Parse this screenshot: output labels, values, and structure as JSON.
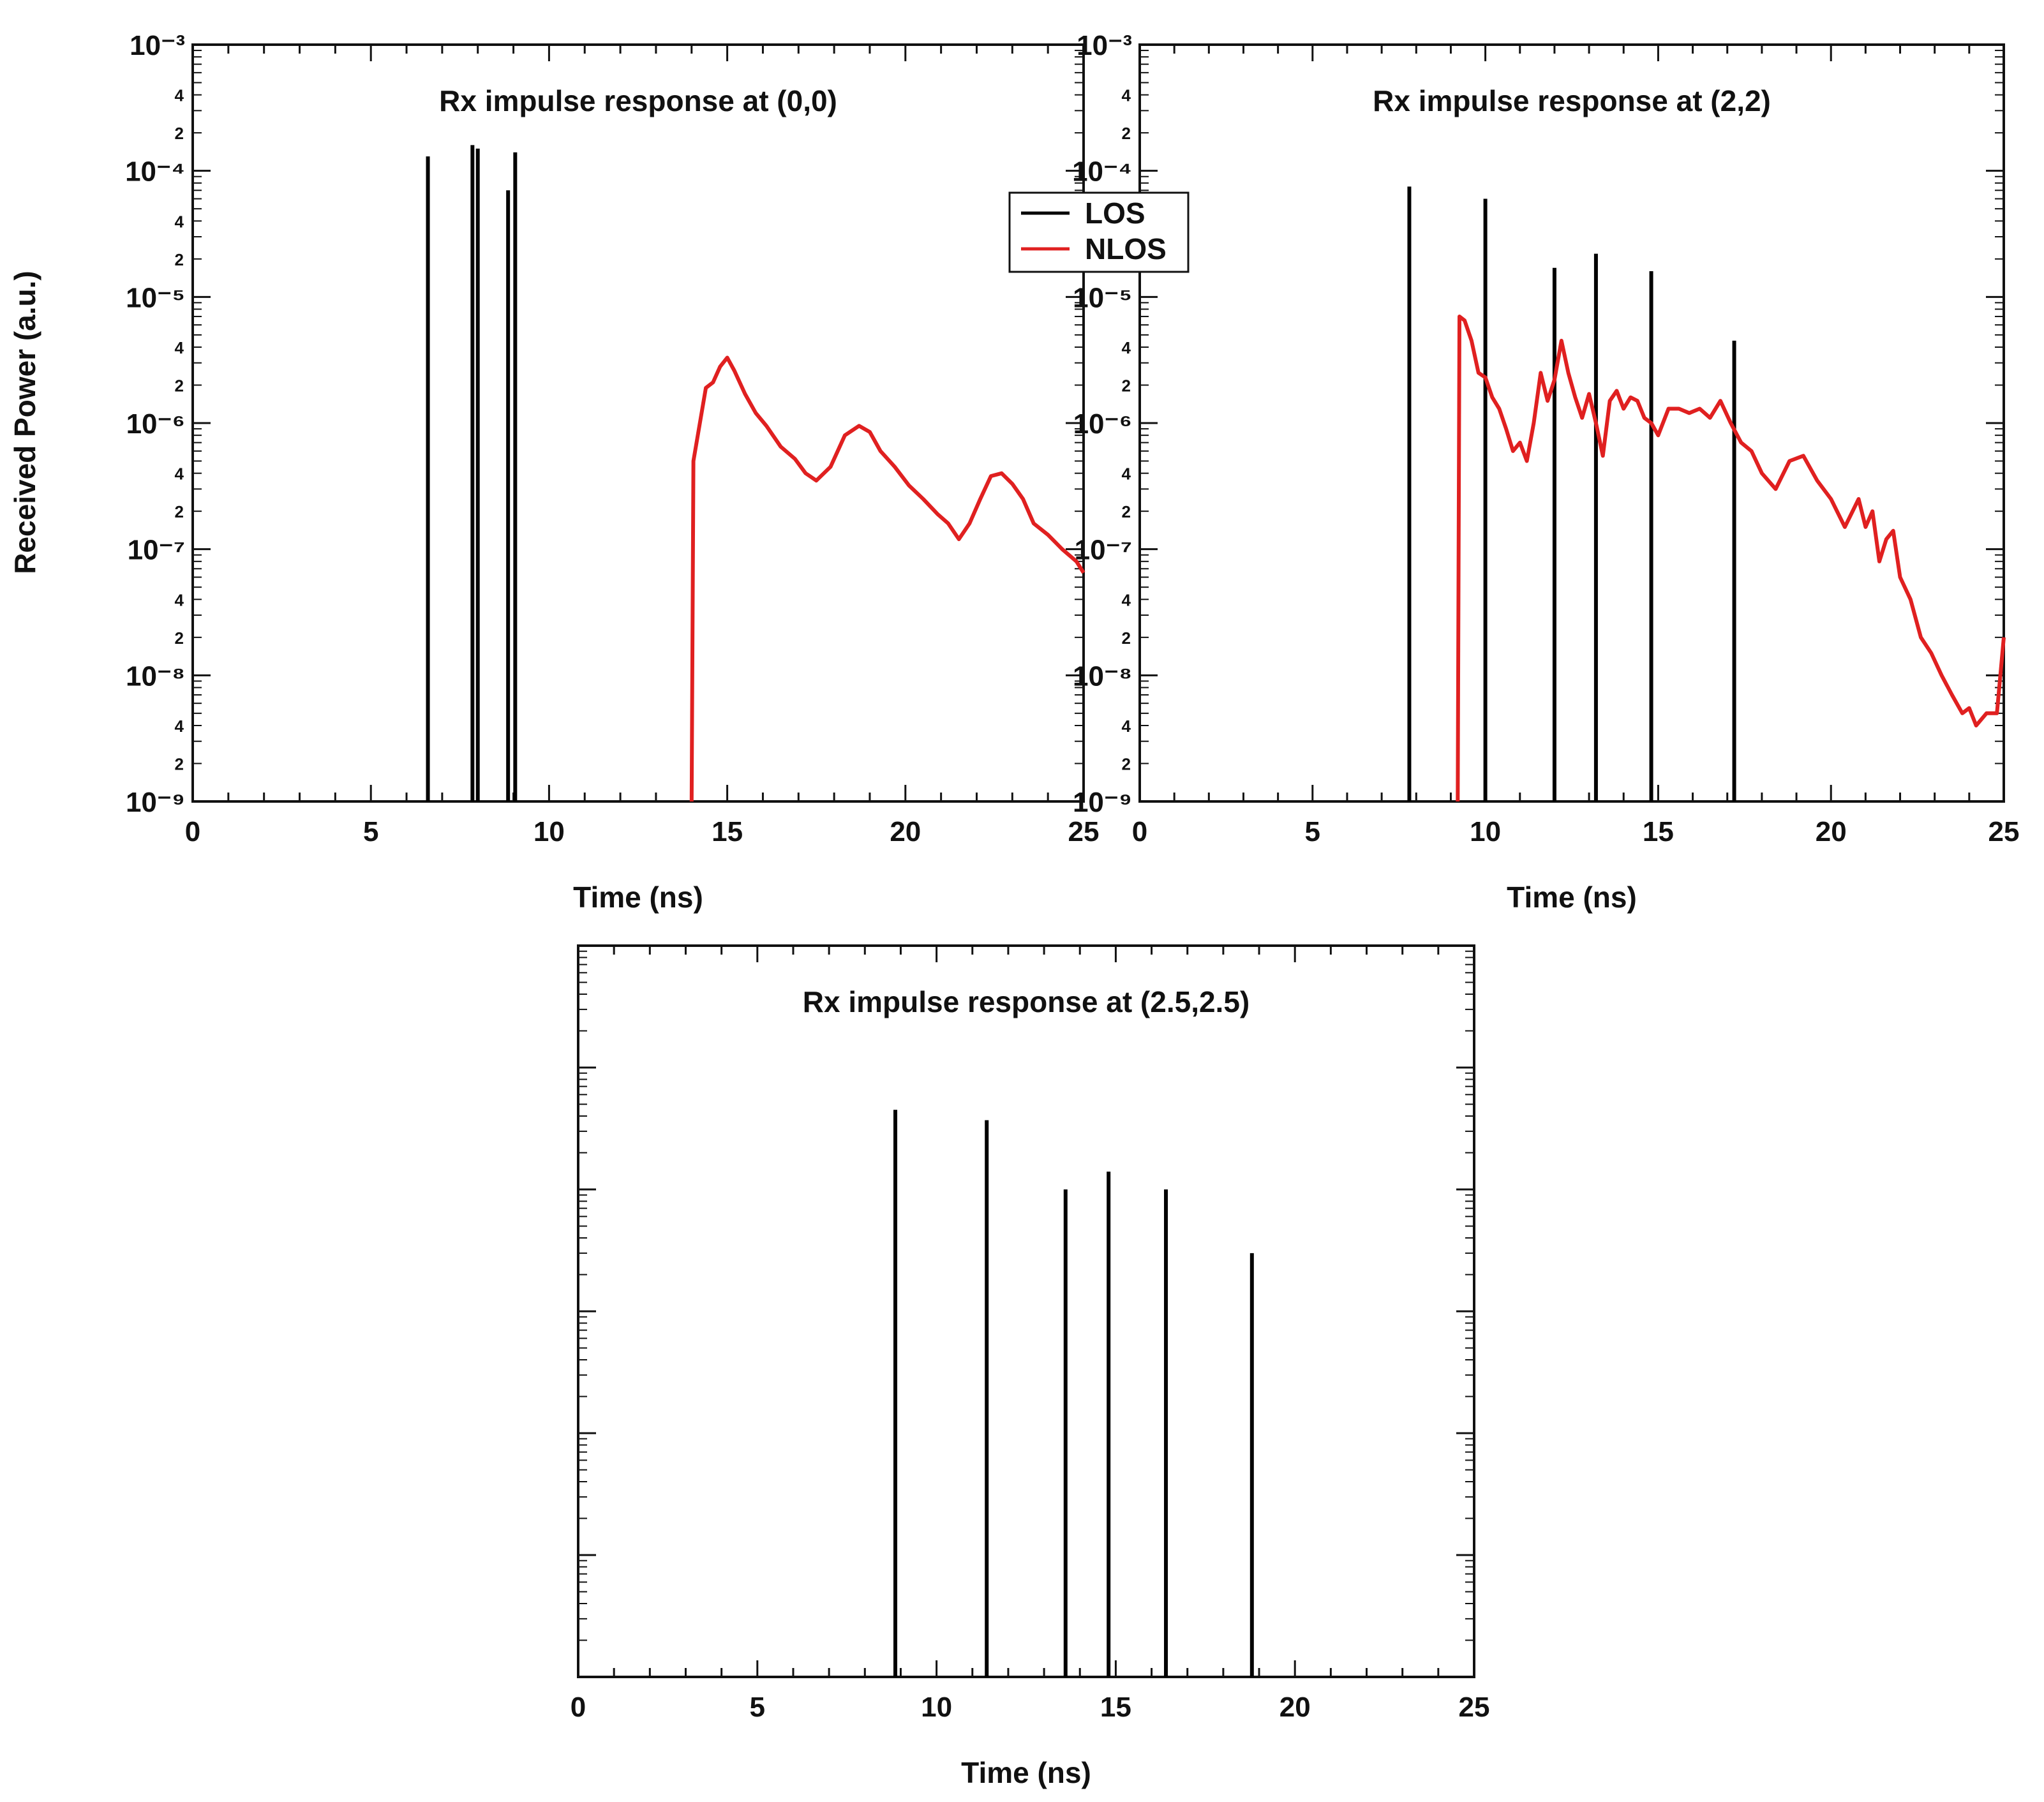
{
  "figure": {
    "ylabel": "Received Power (a.u.)"
  },
  "legend": {
    "entries": [
      {
        "label": "LOS",
        "color": "#000000"
      },
      {
        "label": "NLOS",
        "color": "#e02020"
      }
    ]
  },
  "chart_data": [
    {
      "type": "line",
      "title": "Rx impulse response at (0,0)",
      "xlabel": "Time (ns)",
      "ylabel": "Received Power (a.u.)",
      "xlim": [
        0,
        25
      ],
      "ylim": [
        1e-09,
        0.001
      ],
      "yscale": "log",
      "x_ticks": [
        0,
        5,
        10,
        15,
        20,
        25
      ],
      "series": [
        {
          "name": "LOS",
          "color": "#000000",
          "impulses": [
            {
              "x": 6.6,
              "y": 0.00013
            },
            {
              "x": 7.85,
              "y": 0.00016
            },
            {
              "x": 8.0,
              "y": 0.00015
            },
            {
              "x": 8.85,
              "y": 7e-05
            },
            {
              "x": 9.05,
              "y": 0.00014
            }
          ]
        },
        {
          "name": "NLOS",
          "color": "#e02020",
          "start_x": 14.0,
          "x": [
            14.05,
            14.4,
            14.6,
            14.8,
            15.0,
            15.2,
            15.5,
            15.8,
            16.1,
            16.5,
            16.9,
            17.2,
            17.5,
            17.9,
            18.3,
            18.7,
            19.0,
            19.3,
            19.7,
            20.1,
            20.5,
            20.9,
            21.2,
            21.5,
            21.8,
            22.1,
            22.4,
            22.7,
            23.0,
            23.3,
            23.6,
            24.0,
            24.4,
            24.8,
            25.0
          ],
          "y": [
            5e-07,
            1.9e-06,
            2.1e-06,
            2.8e-06,
            3.3e-06,
            2.6e-06,
            1.7e-06,
            1.2e-06,
            9.5e-07,
            6.5e-07,
            5.2e-07,
            4e-07,
            3.5e-07,
            4.5e-07,
            8e-07,
            9.5e-07,
            8.5e-07,
            6e-07,
            4.5e-07,
            3.2e-07,
            2.5e-07,
            1.9e-07,
            1.6e-07,
            1.2e-07,
            1.6e-07,
            2.5e-07,
            3.8e-07,
            4e-07,
            3.3e-07,
            2.5e-07,
            1.6e-07,
            1.3e-07,
            1e-07,
            8e-08,
            6.5e-08
          ]
        }
      ]
    },
    {
      "type": "line",
      "title": "Rx impulse response at (2,2)",
      "xlabel": "Time (ns)",
      "xlim": [
        0,
        25
      ],
      "ylim": [
        1e-09,
        0.001
      ],
      "yscale": "log",
      "x_ticks": [
        0,
        5,
        10,
        15,
        20,
        25
      ],
      "series": [
        {
          "name": "LOS",
          "color": "#000000",
          "impulses": [
            {
              "x": 7.8,
              "y": 7.5e-05
            },
            {
              "x": 10.0,
              "y": 6e-05
            },
            {
              "x": 12.0,
              "y": 1.7e-05
            },
            {
              "x": 13.2,
              "y": 2.2e-05
            },
            {
              "x": 14.8,
              "y": 1.6e-05
            },
            {
              "x": 17.2,
              "y": 4.5e-06
            }
          ]
        },
        {
          "name": "NLOS",
          "color": "#e02020",
          "start_x": 9.2,
          "x": [
            9.25,
            9.4,
            9.6,
            9.8,
            10.0,
            10.2,
            10.4,
            10.6,
            10.8,
            11.0,
            11.2,
            11.4,
            11.6,
            11.8,
            12.0,
            12.2,
            12.4,
            12.6,
            12.8,
            13.0,
            13.2,
            13.4,
            13.6,
            13.8,
            14.0,
            14.2,
            14.4,
            14.6,
            14.8,
            15.0,
            15.3,
            15.6,
            15.9,
            16.2,
            16.5,
            16.8,
            17.1,
            17.4,
            17.7,
            18.0,
            18.4,
            18.8,
            19.2,
            19.6,
            20.0,
            20.4,
            20.8,
            21.0,
            21.2,
            21.4,
            21.6,
            21.8,
            22.0,
            22.3,
            22.6,
            22.9,
            23.2,
            23.5,
            23.8,
            24.0,
            24.2,
            24.5,
            24.8,
            25.0
          ],
          "y": [
            7e-06,
            6.5e-06,
            4.5e-06,
            2.5e-06,
            2.3e-06,
            1.6e-06,
            1.3e-06,
            9e-07,
            6e-07,
            7e-07,
            5e-07,
            1e-06,
            2.5e-06,
            1.5e-06,
            2.2e-06,
            4.5e-06,
            2.5e-06,
            1.6e-06,
            1.1e-06,
            1.7e-06,
            1e-06,
            5.5e-07,
            1.5e-06,
            1.8e-06,
            1.3e-06,
            1.6e-06,
            1.5e-06,
            1.1e-06,
            1e-06,
            8e-07,
            1.3e-06,
            1.3e-06,
            1.2e-06,
            1.3e-06,
            1.1e-06,
            1.5e-06,
            1e-06,
            7e-07,
            6e-07,
            4e-07,
            3e-07,
            5e-07,
            5.5e-07,
            3.5e-07,
            2.5e-07,
            1.5e-07,
            2.5e-07,
            1.5e-07,
            2e-07,
            8e-08,
            1.2e-07,
            1.4e-07,
            6e-08,
            4e-08,
            2e-08,
            1.5e-08,
            1e-08,
            7e-09,
            5e-09,
            5.5e-09,
            4e-09,
            5e-09,
            5e-09,
            2e-08
          ]
        }
      ]
    },
    {
      "type": "line",
      "title": "Rx impulse response at (2.5,2.5)",
      "xlabel": "Time (ns)",
      "xlim": [
        0,
        25
      ],
      "ylim": [
        1e-09,
        0.001
      ],
      "yscale": "log",
      "x_ticks": [
        0,
        5,
        10,
        15,
        20,
        25
      ],
      "show_y_tick_labels": false,
      "series": [
        {
          "name": "LOS",
          "color": "#000000",
          "impulses": [
            {
              "x": 8.85,
              "y": 4.5e-05
            },
            {
              "x": 11.4,
              "y": 3.7e-05
            },
            {
              "x": 13.6,
              "y": 1e-05
            },
            {
              "x": 14.8,
              "y": 1.4e-05
            },
            {
              "x": 16.4,
              "y": 1e-05
            },
            {
              "x": 18.8,
              "y": 3e-06
            }
          ]
        }
      ]
    }
  ]
}
